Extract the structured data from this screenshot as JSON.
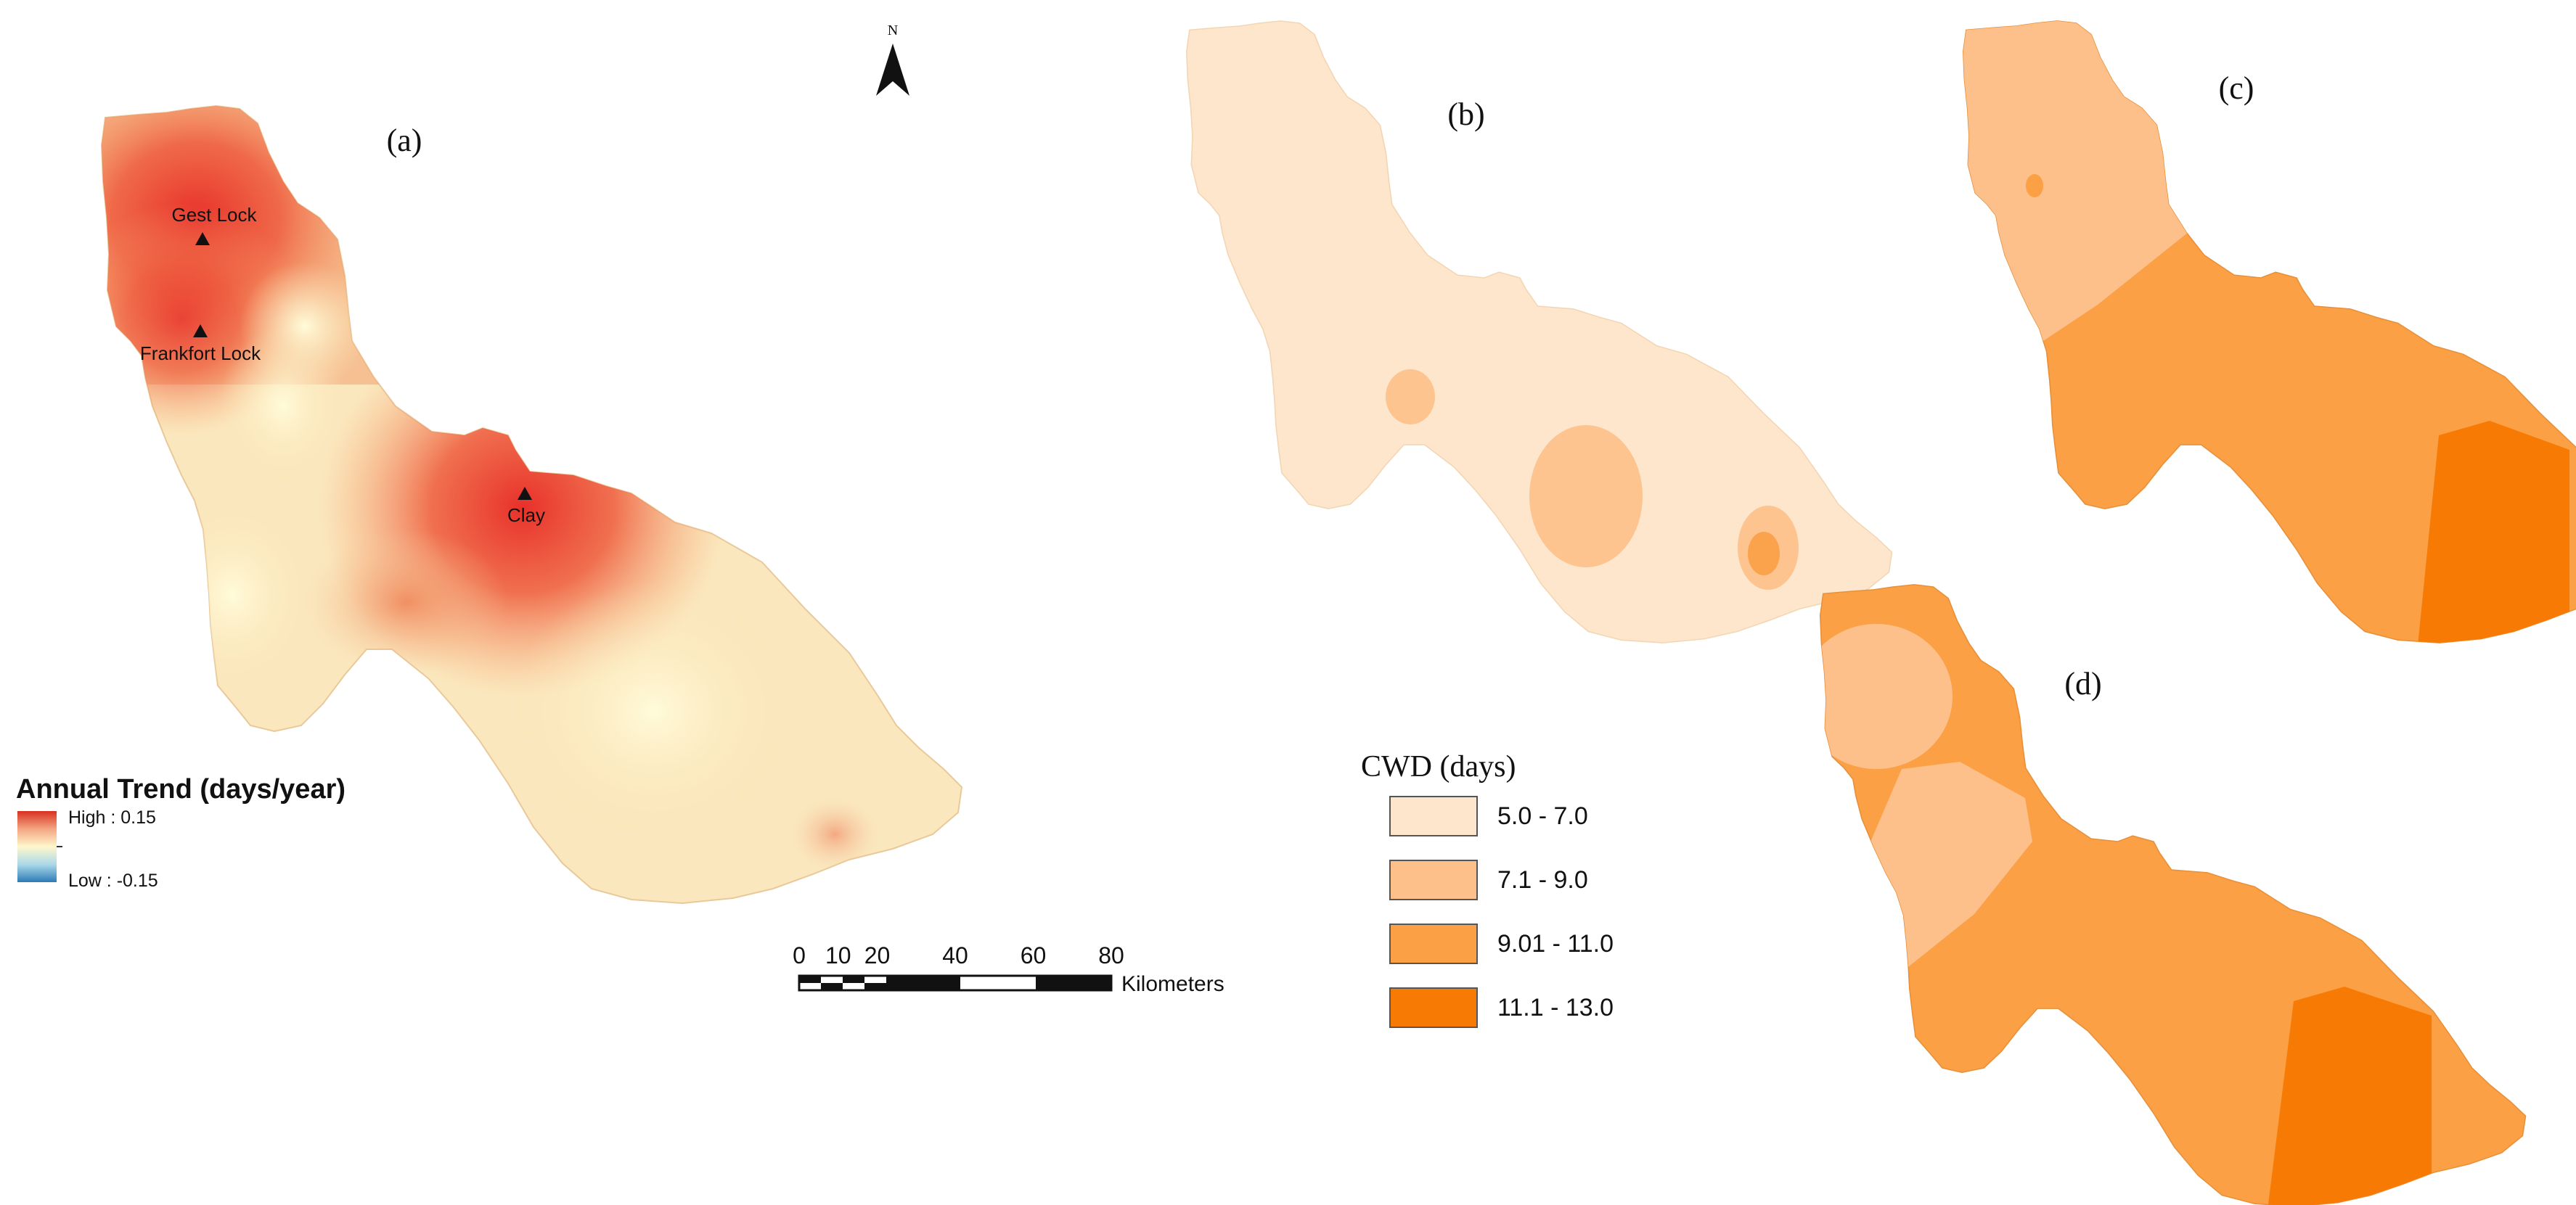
{
  "panels": [
    {
      "label": "(a)"
    },
    {
      "label": "(b)"
    },
    {
      "label": "(c)"
    },
    {
      "label": "(d)"
    }
  ],
  "north_arrow": {
    "letter": "N"
  },
  "stations": [
    {
      "name": "Gest Lock",
      "symbol": "triangle-icon"
    },
    {
      "name": "Frankfort Lock",
      "symbol": "triangle-icon"
    },
    {
      "name": "Clay",
      "symbol": "triangle-icon"
    }
  ],
  "trend_legend": {
    "title": "Annual Trend (days/year)",
    "high_label": "High : 0.15",
    "low_label": "Low : -0.15",
    "colors": [
      "#d7301f",
      "#f4a582",
      "#fff7cc",
      "#abd9e9",
      "#2c7bb6"
    ]
  },
  "cwd_legend": {
    "title": "CWD (days)",
    "classes": [
      {
        "range": "5.0 - 7.0",
        "color": "#fde6cc"
      },
      {
        "range": "7.1 - 9.0",
        "color": "#fdc08a"
      },
      {
        "range": "9.01 - 11.0",
        "color": "#fba045"
      },
      {
        "range": "11.1 - 13.0",
        "color": "#f77a05"
      }
    ]
  },
  "scale_bar": {
    "ticks": [
      "0",
      "10",
      "20",
      "40",
      "60",
      "80"
    ],
    "unit": "Kilometers"
  }
}
